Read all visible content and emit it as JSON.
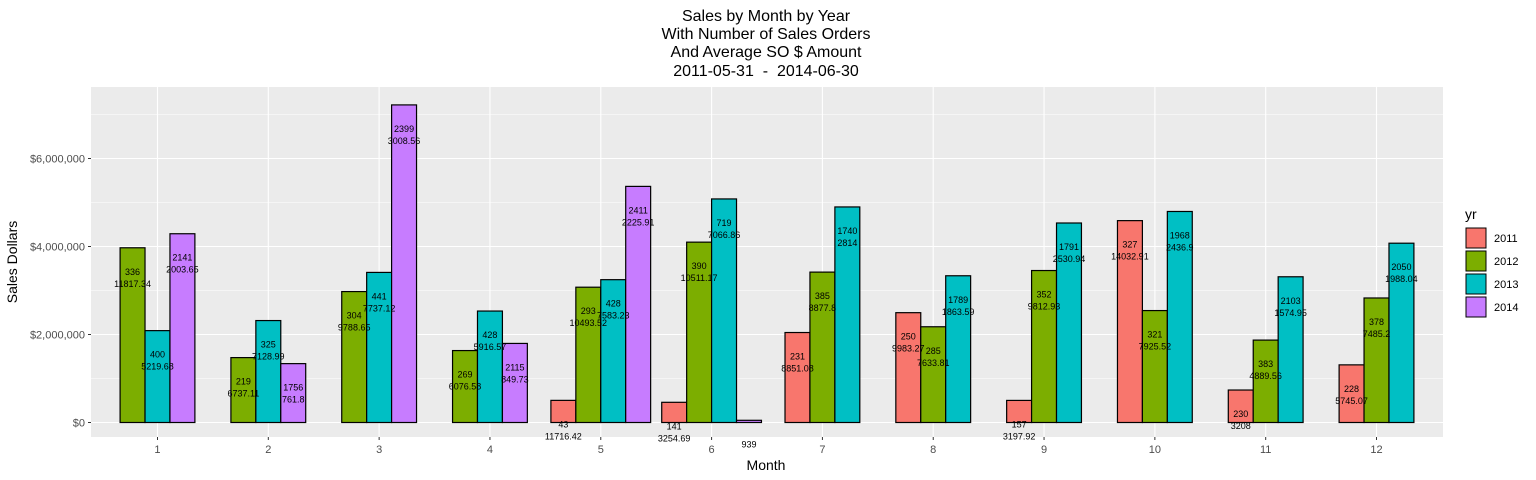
{
  "chart_data": {
    "type": "bar",
    "title_lines": [
      "Sales by Month by Year",
      "With Number of Sales Orders",
      "And Average SO $ Amount",
      "2011-05-31  -  2014-06-30"
    ],
    "xlabel": "Month",
    "ylabel": "Sales Dollars",
    "ylim": [
      0,
      7600000
    ],
    "y_ticks": [
      0,
      2000000,
      4000000,
      6000000
    ],
    "y_tick_labels": [
      "$0",
      "$2,000,000",
      "$4,000,000",
      "$6,000,000"
    ],
    "categories": [
      "1",
      "2",
      "3",
      "4",
      "5",
      "6",
      "7",
      "8",
      "9",
      "10",
      "11",
      "12"
    ],
    "legend_title": "yr",
    "legend_position": "right",
    "grid": true,
    "series": [
      {
        "name": "2011",
        "color": "#F8766D",
        "values": [
          null,
          null,
          null,
          null,
          503000,
          459000,
          2045000,
          2496000,
          502000,
          4588000,
          738000,
          1310000
        ],
        "orders": [
          null,
          null,
          null,
          null,
          "43",
          "141",
          "231",
          "250",
          "157",
          "327",
          "230",
          "228"
        ],
        "avg": [
          null,
          null,
          null,
          null,
          "11716.42",
          "3254.69",
          "8851.08",
          "9983.27",
          "3197.92",
          "14032.91",
          "3208",
          "5745.07"
        ]
      },
      {
        "name": "2012",
        "color": "#7CAE00",
        "values": [
          3971000,
          1475000,
          2976000,
          1635000,
          3075000,
          4099000,
          3418000,
          2176000,
          3454000,
          2544000,
          1873000,
          2830000
        ],
        "orders": [
          "336",
          "219",
          "304",
          "269",
          "293",
          "390",
          "385",
          "285",
          "352",
          "321",
          "383",
          "378"
        ],
        "avg": [
          "11817.34",
          "6737.11",
          "9788.65",
          "6076.58",
          "10493.52",
          "10511.17",
          "8877.8",
          "7633.81",
          "9812.93",
          "7925.52",
          "4889.56",
          "7485.2"
        ]
      },
      {
        "name": "2013",
        "color": "#00BFC4",
        "values": [
          2088000,
          2317000,
          3411000,
          2533000,
          3246000,
          5081000,
          4899000,
          3335000,
          4534000,
          4796000,
          3312000,
          4075000
        ],
        "orders": [
          "400",
          "325",
          "441",
          "428",
          "428",
          "719",
          "1740",
          "1789",
          "1791",
          "1968",
          "2103",
          "2050"
        ],
        "avg": [
          "5219.68",
          "7128.99",
          "7737.12",
          "5916.57",
          "7583.23",
          "7066.86",
          "2814",
          "1863.59",
          "2530.94",
          "2436.9",
          "1574.95",
          "1988.04"
        ]
      },
      {
        "name": "2014",
        "color": "#C77CFF",
        "values": [
          4290000,
          1338000,
          7218000,
          1797000,
          5366000,
          50000,
          null,
          null,
          null,
          null,
          null,
          null
        ],
        "orders": [
          "2141",
          "1756",
          "2399",
          "2115",
          "2411",
          "939",
          null,
          null,
          null,
          null,
          null,
          null
        ],
        "avg": [
          "2003.65",
          "761.8",
          "3008.56",
          "849.73",
          "2225.91",
          null,
          null,
          null,
          null,
          null,
          null,
          null
        ]
      }
    ]
  }
}
